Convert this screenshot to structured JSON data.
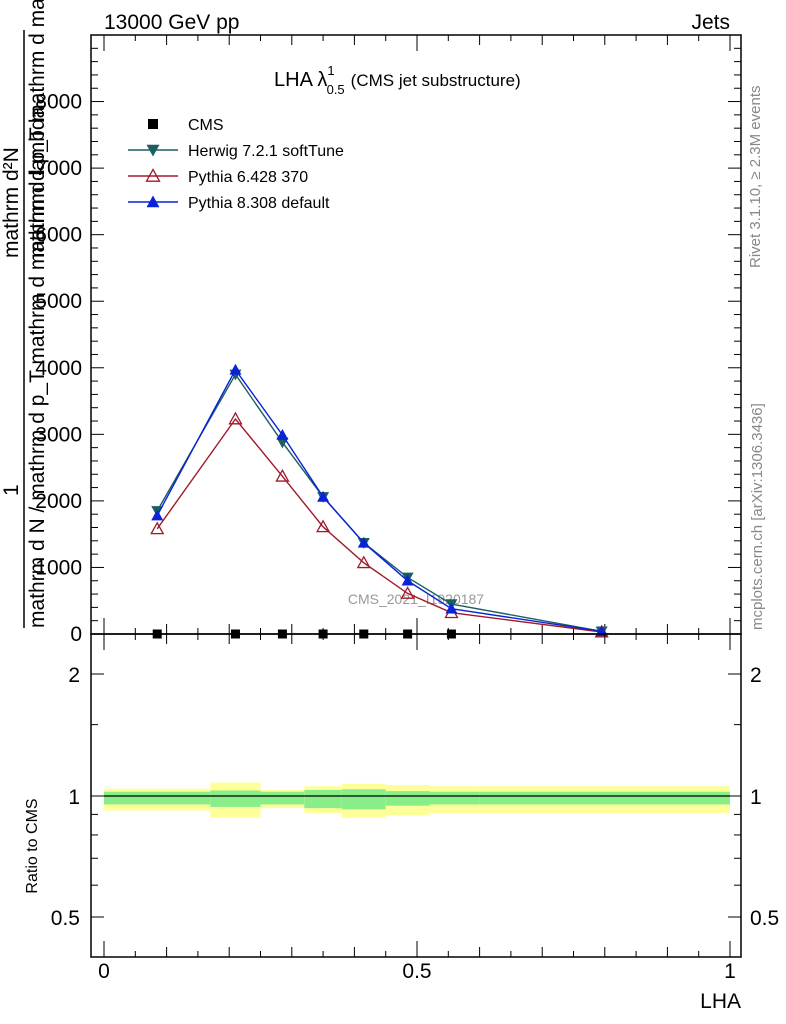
{
  "header": {
    "energy_label": "13000 GeV pp",
    "process_label": "Jets"
  },
  "side_labels": {
    "rivet": "Rivet 3.1.10, ≥ 2.3M events",
    "mcplots": "mcplots.cern.ch [arXiv:1306.3436]"
  },
  "watermark": "CMS_2021_I1920187",
  "chart_data": [
    {
      "type": "line",
      "title": "LHA λ¹₀.₅ (CMS jet substructure)",
      "title_parts": {
        "main": "LHA λ",
        "sup": "1",
        "sub": "0.5",
        "rest": "(CMS jet substructure)"
      },
      "ylabel_numerator": "1",
      "ylabel_denominator": "mathrm d N / mathrm d p_T mathrm d mathrm d lambda",
      "ylabel_top": "mathrm d²N",
      "ylabel_overlay": "mathrm d p_T mathrm d mathrm d lambda",
      "ylim": [
        0,
        9000
      ],
      "xlim": [
        0,
        1
      ],
      "yticks": [
        "0",
        "1000",
        "2000",
        "3000",
        "4000",
        "5000",
        "6000",
        "7000",
        "8000"
      ],
      "legend_position": "top-left",
      "series": [
        {
          "name": "CMS",
          "color": "#000000",
          "marker": "square",
          "x": [
            0.085,
            0.21,
            0.285,
            0.35,
            0.415,
            0.485,
            0.555
          ],
          "values": [
            0,
            0,
            0,
            0,
            0,
            0,
            0
          ]
        },
        {
          "name": "Herwig 7.2.1 softTune",
          "color": "#1c5f61",
          "marker": "triangle-down",
          "x": [
            0.085,
            0.21,
            0.285,
            0.35,
            0.415,
            0.485,
            0.555,
            0.795
          ],
          "values": [
            1850,
            3900,
            2880,
            2060,
            1370,
            850,
            450,
            40
          ]
        },
        {
          "name": "Pythia 6.428 370",
          "color": "#a01a2a",
          "marker": "triangle-up-open",
          "x": [
            0.085,
            0.21,
            0.285,
            0.35,
            0.415,
            0.485,
            0.555,
            0.795
          ],
          "values": [
            1580,
            3230,
            2370,
            1610,
            1070,
            610,
            320,
            30
          ]
        },
        {
          "name": "Pythia 8.308 default",
          "color": "#0a22d8",
          "marker": "triangle-up",
          "x": [
            0.085,
            0.21,
            0.285,
            0.35,
            0.415,
            0.485,
            0.555,
            0.795
          ],
          "values": [
            1780,
            3970,
            2990,
            2060,
            1370,
            800,
            380,
            40
          ]
        }
      ]
    },
    {
      "type": "area",
      "ylabel": "Ratio to CMS",
      "xlabel": "LHA",
      "xlim": [
        0,
        1
      ],
      "ylim": [
        0.4,
        2.3
      ],
      "yticks": [
        "0.5",
        "1",
        "2"
      ],
      "xticks": [
        "0",
        "0.5",
        "1"
      ],
      "reference_line": 1,
      "bands": {
        "bin_edges": [
          0,
          0.17,
          0.25,
          0.32,
          0.38,
          0.45,
          0.52,
          0.6,
          1.0
        ],
        "outer_color": "#ffff99",
        "inner_color": "#88ee88",
        "outer_lo": [
          0.94,
          0.91,
          0.95,
          0.93,
          0.91,
          0.92,
          0.93,
          0.93
        ],
        "outer_hi": [
          1.06,
          1.11,
          1.05,
          1.08,
          1.1,
          1.09,
          1.08,
          1.08
        ],
        "inner_lo": [
          0.965,
          0.955,
          0.965,
          0.95,
          0.945,
          0.96,
          0.965,
          0.965
        ],
        "inner_hi": [
          1.035,
          1.045,
          1.035,
          1.05,
          1.055,
          1.04,
          1.035,
          1.035
        ]
      }
    }
  ]
}
